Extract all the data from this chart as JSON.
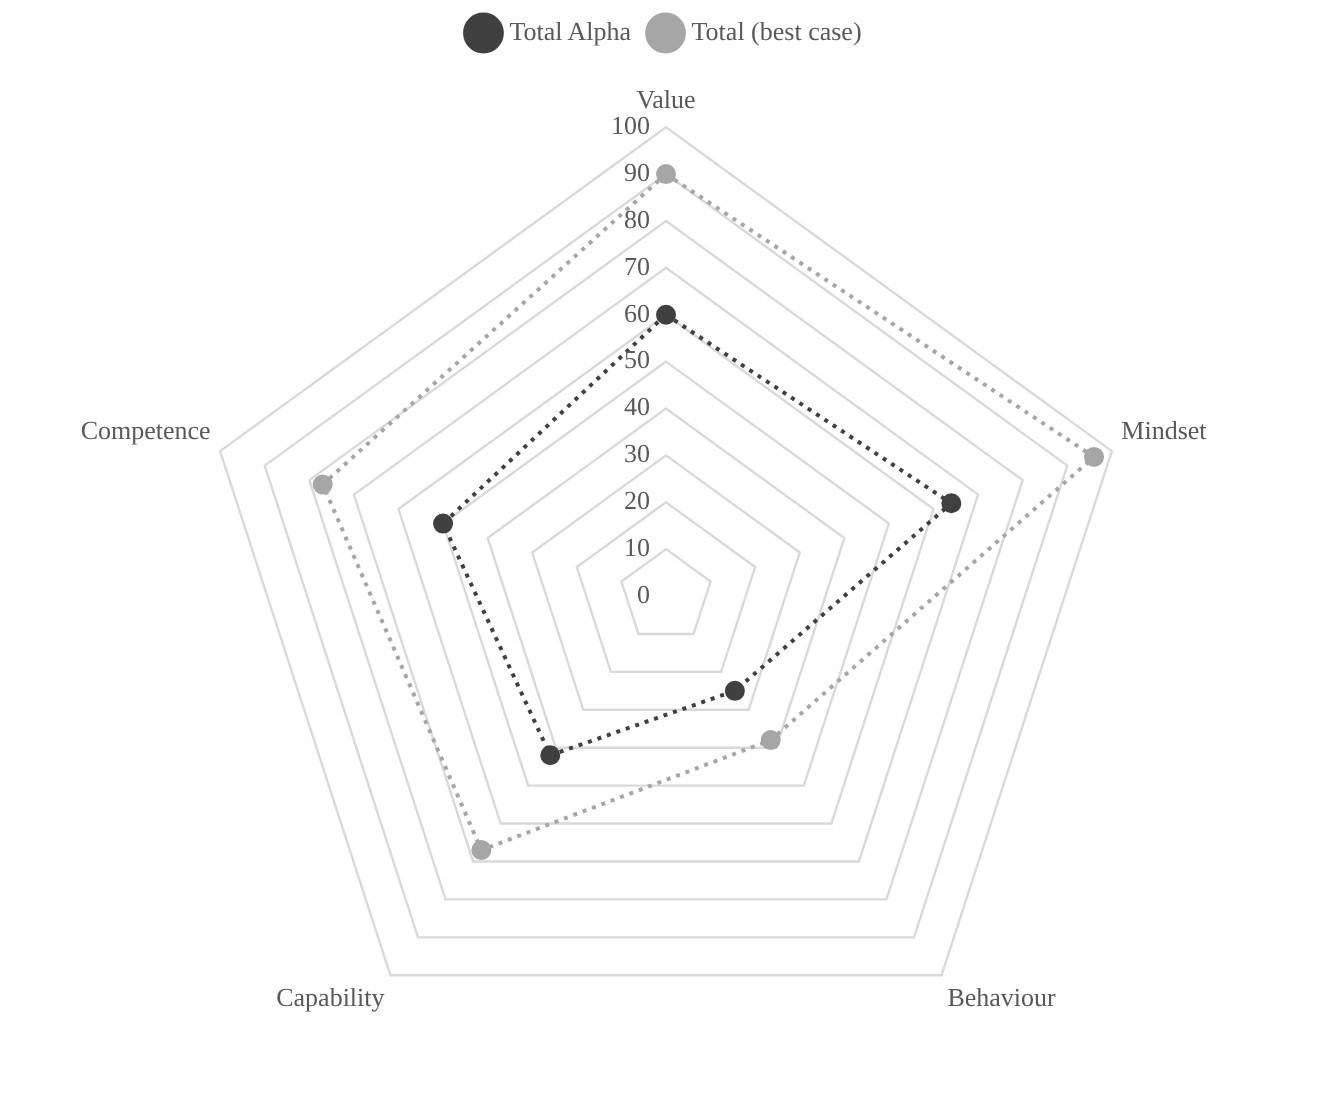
{
  "chart_data": {
    "type": "radar",
    "categories": [
      "Value",
      "Mindset",
      "Behaviour",
      "Capability",
      "Competence"
    ],
    "series": [
      {
        "name": "Total Alpha",
        "color": "#404040",
        "values": [
          60,
          64,
          25,
          42,
          50
        ]
      },
      {
        "name": "Total (best case)",
        "color": "#a6a6a6",
        "values": [
          90,
          96,
          38,
          67,
          77
        ]
      }
    ],
    "ylim": [
      0,
      100
    ],
    "yticks": [
      0,
      10,
      20,
      30,
      40,
      50,
      60,
      70,
      80,
      90,
      100
    ],
    "grid": true,
    "legend": "top",
    "marker": "circle",
    "line_style": "dotted"
  }
}
